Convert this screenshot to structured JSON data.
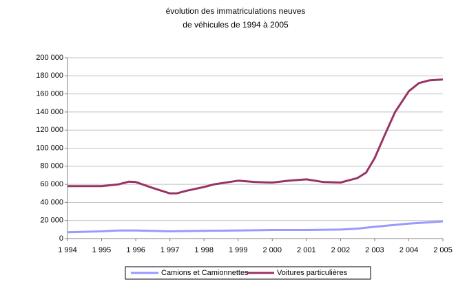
{
  "chart_data": {
    "type": "line",
    "title": [
      "évolution des immatriculations neuves",
      "de véhicules de 1994 à 2005"
    ],
    "series": [
      {
        "name": "Camions et Camionnettes",
        "color": "#9999ff",
        "x": [
          1994,
          1995,
          1995.5,
          1996,
          1997,
          1998,
          1999,
          2000,
          2001,
          2002,
          2002.5,
          2003,
          2004,
          2005
        ],
        "values": [
          7000,
          8000,
          9000,
          9000,
          8000,
          8500,
          9000,
          9500,
          9500,
          10000,
          11000,
          13000,
          16500,
          19000
        ]
      },
      {
        "name": "Voitures particulières",
        "color": "#993366",
        "x": [
          1994,
          1994.5,
          1995,
          1995.5,
          1995.8,
          1996,
          1996.5,
          1997,
          1997.2,
          1997.5,
          1998,
          1998.3,
          1999,
          1999.5,
          2000,
          2000.5,
          2001,
          2001.5,
          2002,
          2002.5,
          2002.75,
          2003,
          2003.3,
          2003.6,
          2004,
          2004.3,
          2004.6,
          2005
        ],
        "values": [
          58000,
          58000,
          58000,
          60000,
          63000,
          62500,
          56000,
          50000,
          50000,
          53000,
          57000,
          60000,
          64000,
          62500,
          62000,
          64000,
          65500,
          62500,
          62000,
          67000,
          73000,
          89000,
          115000,
          140000,
          163000,
          172000,
          175000,
          176000
        ]
      }
    ],
    "xlim": [
      1994,
      2005
    ],
    "xticks": [
      {
        "value": 1994,
        "label": "1 994"
      },
      {
        "value": 1995,
        "label": "1 995"
      },
      {
        "value": 1996,
        "label": "1 996"
      },
      {
        "value": 1997,
        "label": "1 997"
      },
      {
        "value": 1998,
        "label": "1 998"
      },
      {
        "value": 1999,
        "label": "1 999"
      },
      {
        "value": 2000,
        "label": "2 000"
      },
      {
        "value": 2001,
        "label": "2 001"
      },
      {
        "value": 2002,
        "label": "2 002"
      },
      {
        "value": 2003,
        "label": "2 003"
      },
      {
        "value": 2004,
        "label": "2 004"
      },
      {
        "value": 2005,
        "label": "2 005"
      }
    ],
    "ylim": [
      0,
      200000
    ],
    "yticks": [
      0,
      {
        "value": 20000,
        "label": "20 000"
      },
      {
        "value": 40000,
        "label": "40 000"
      },
      {
        "value": 60000,
        "label": "60 000"
      },
      {
        "value": 80000,
        "label": "80 000"
      },
      {
        "value": 100000,
        "label": "100 000"
      },
      {
        "value": 120000,
        "label": "120 000"
      },
      {
        "value": 140000,
        "label": "140 000"
      },
      {
        "value": 160000,
        "label": "160 000"
      },
      {
        "value": 180000,
        "label": "180 000"
      },
      {
        "value": 200000,
        "label": "200 000"
      }
    ],
    "grid": true,
    "legend": "bottom"
  }
}
